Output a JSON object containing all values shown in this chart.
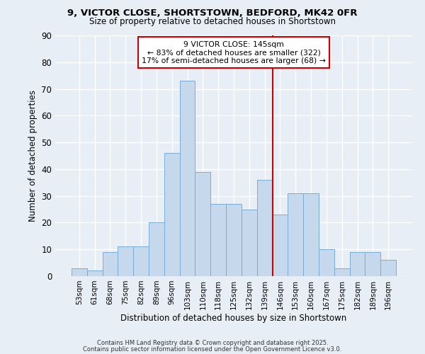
{
  "title1": "9, VICTOR CLOSE, SHORTSTOWN, BEDFORD, MK42 0FR",
  "title2": "Size of property relative to detached houses in Shortstown",
  "xlabel": "Distribution of detached houses by size in Shortstown",
  "ylabel": "Number of detached properties",
  "bar_color": "#c5d8ec",
  "bar_edge_color": "#7aadd4",
  "background_color": "#e8eef5",
  "grid_color": "#ffffff",
  "categories": [
    "53sqm",
    "61sqm",
    "68sqm",
    "75sqm",
    "82sqm",
    "89sqm",
    "96sqm",
    "103sqm",
    "110sqm",
    "118sqm",
    "125sqm",
    "132sqm",
    "139sqm",
    "146sqm",
    "153sqm",
    "160sqm",
    "167sqm",
    "175sqm",
    "182sqm",
    "189sqm",
    "196sqm"
  ],
  "values": [
    3,
    2,
    9,
    11,
    11,
    20,
    46,
    73,
    39,
    27,
    27,
    25,
    36,
    23,
    31,
    31,
    10,
    3,
    9,
    9,
    6
  ],
  "property_label": "9 VICTOR CLOSE: 145sqm",
  "annotation_line1": "← 83% of detached houses are smaller (322)",
  "annotation_line2": "17% of semi-detached houses are larger (68) →",
  "vline_color": "#cc0000",
  "annotation_box_edge_color": "#cc0000",
  "ylim": [
    0,
    90
  ],
  "yticks": [
    0,
    10,
    20,
    30,
    40,
    50,
    60,
    70,
    80,
    90
  ],
  "footer1": "Contains HM Land Registry data © Crown copyright and database right 2025.",
  "footer2": "Contains public sector information licensed under the Open Government Licence v3.0.",
  "vline_index": 13
}
